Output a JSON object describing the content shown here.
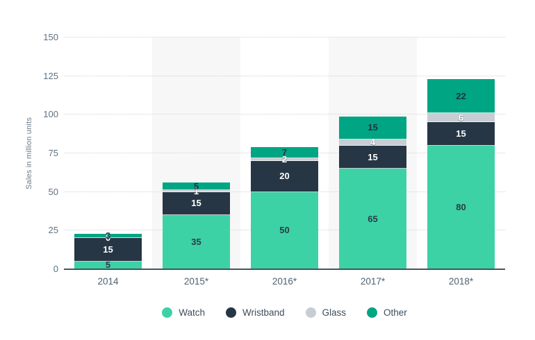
{
  "chart_data": {
    "type": "bar",
    "stacked": true,
    "ylabel": "Sales in million units",
    "categories": [
      "2014",
      "2015*",
      "2016*",
      "2017*",
      "2018*"
    ],
    "series": [
      {
        "name": "Watch",
        "color": "#3dd2a5",
        "label_color": "#2c3b4a",
        "values": [
          5,
          35,
          50,
          65,
          80
        ]
      },
      {
        "name": "Wristband",
        "color": "#263645",
        "label_color": "#ffffff",
        "values": [
          15,
          15,
          20,
          15,
          15
        ]
      },
      {
        "name": "Glass",
        "color": "#c8cdd3",
        "label_color": "#ffffff",
        "values": [
          0,
          1,
          2,
          4,
          6
        ]
      },
      {
        "name": "Other",
        "color": "#00a584",
        "label_color": "#1f3342",
        "values": [
          3,
          5,
          7,
          15,
          22
        ]
      }
    ],
    "yticks": [
      0,
      25,
      50,
      75,
      100,
      125,
      150
    ],
    "ylim": [
      0,
      150
    ],
    "grid": "dotted horizontal",
    "legend_position": "bottom",
    "band_color": "#f7f7f7",
    "axis_color": "#46535f",
    "gridline_color": "#d2d2d2",
    "tick_label_color": "#5e7080"
  }
}
